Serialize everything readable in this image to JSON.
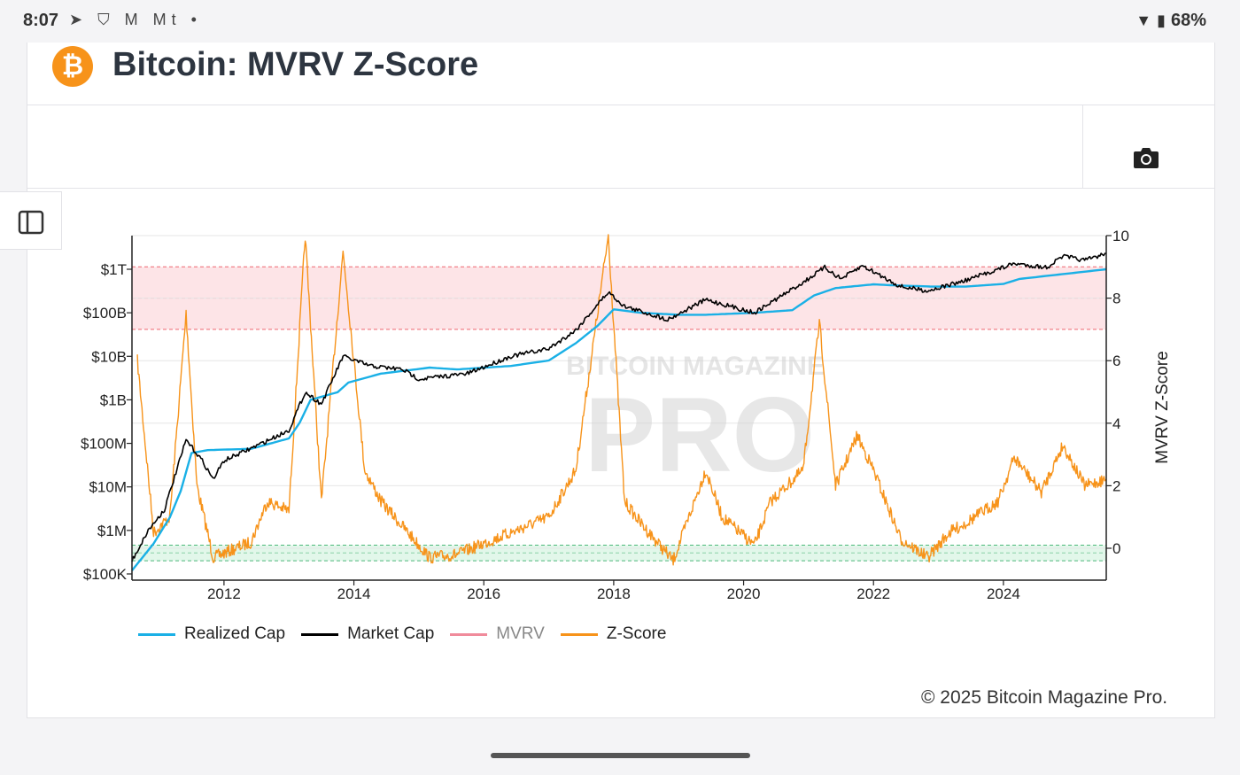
{
  "status_bar": {
    "time": "8:07",
    "icons": "➤ ⛉ M Mt •",
    "battery": "68%"
  },
  "header": {
    "logo_glyph": "₿",
    "title": "Bitcoin: MVRV Z-Score"
  },
  "watermark": {
    "line1": "BITCOIN MAGAZINE",
    "line2": "PRO"
  },
  "copyright": "© 2025 Bitcoin Magazine Pro.",
  "colors": {
    "realized_cap": "#1ab0e6",
    "market_cap": "#000000",
    "mvrv": "#f08b9b",
    "zscore": "#f7931a",
    "red_band": "#fde4e7",
    "green_band": "#e2f7ea"
  },
  "chart_data": {
    "type": "line",
    "x_range": [
      "2010-08",
      "2025-08"
    ],
    "x_ticks": [
      "2012",
      "2014",
      "2016",
      "2018",
      "2020",
      "2022",
      "2024"
    ],
    "left_axis": {
      "scale": "log",
      "tick_labels": [
        "$100K",
        "$1M",
        "$10M",
        "$100M",
        "$1B",
        "$10B",
        "$100B",
        "$1T"
      ],
      "range_usd": [
        100000,
        6000000000000
      ]
    },
    "right_axis": {
      "label": "MVRV Z-Score",
      "range": [
        -1,
        10
      ],
      "ticks": [
        0,
        2,
        4,
        6,
        8,
        10
      ]
    },
    "bands": [
      {
        "name": "overvalued",
        "zscore_from": 7,
        "zscore_to": 9
      },
      {
        "name": "undervalued",
        "zscore_from": -0.4,
        "zscore_to": 0.1
      }
    ],
    "legend": {
      "placement": "bottom-left"
    },
    "series": [
      {
        "name": "Realized Cap",
        "axis": "left",
        "points": [
          [
            "2010-08",
            120000
          ],
          [
            "2010-12",
            500000
          ],
          [
            "2011-03",
            2000000
          ],
          [
            "2011-05",
            8000000
          ],
          [
            "2011-07",
            60000000
          ],
          [
            "2011-10",
            70000000
          ],
          [
            "2012-06",
            75000000
          ],
          [
            "2013-01",
            130000000
          ],
          [
            "2013-03",
            300000000
          ],
          [
            "2013-05",
            1000000000
          ],
          [
            "2013-10",
            1500000000
          ],
          [
            "2013-12",
            2500000000
          ],
          [
            "2014-06",
            4000000000
          ],
          [
            "2015-03",
            5500000000
          ],
          [
            "2015-08",
            5000000000
          ],
          [
            "2016-06",
            6000000000
          ],
          [
            "2017-01",
            8000000000
          ],
          [
            "2017-06",
            20000000000
          ],
          [
            "2017-10",
            50000000000
          ],
          [
            "2018-01",
            120000000000
          ],
          [
            "2018-06",
            100000000000
          ],
          [
            "2019-01",
            90000000000
          ],
          [
            "2019-06",
            90000000000
          ],
          [
            "2020-03",
            100000000000
          ],
          [
            "2020-10",
            115000000000
          ],
          [
            "2021-02",
            250000000000
          ],
          [
            "2021-06",
            370000000000
          ],
          [
            "2022-01",
            450000000000
          ],
          [
            "2022-06",
            420000000000
          ],
          [
            "2022-12",
            400000000000
          ],
          [
            "2023-06",
            400000000000
          ],
          [
            "2024-01",
            460000000000
          ],
          [
            "2024-04",
            600000000000
          ],
          [
            "2025-01",
            800000000000
          ],
          [
            "2025-08",
            1000000000000
          ]
        ]
      },
      {
        "name": "Market Cap",
        "axis": "left",
        "points": [
          [
            "2010-08",
            200000
          ],
          [
            "2010-11",
            1000000
          ],
          [
            "2011-02",
            3000000
          ],
          [
            "2011-06",
            120000000
          ],
          [
            "2011-09",
            40000000
          ],
          [
            "2011-11",
            15000000
          ],
          [
            "2012-01",
            40000000
          ],
          [
            "2012-08",
            100000000
          ],
          [
            "2013-01",
            200000000
          ],
          [
            "2013-04",
            1500000000
          ],
          [
            "2013-07",
            800000000
          ],
          [
            "2013-11",
            10000000000
          ],
          [
            "2014-04",
            6000000000
          ],
          [
            "2014-10",
            5000000000
          ],
          [
            "2015-01",
            3000000000
          ],
          [
            "2015-10",
            4000000000
          ],
          [
            "2016-06",
            10000000000
          ],
          [
            "2017-01",
            15000000000
          ],
          [
            "2017-06",
            40000000000
          ],
          [
            "2017-12",
            300000000000
          ],
          [
            "2018-03",
            140000000000
          ],
          [
            "2018-11",
            70000000000
          ],
          [
            "2019-06",
            200000000000
          ],
          [
            "2020-03",
            100000000000
          ],
          [
            "2020-12",
            500000000000
          ],
          [
            "2021-04",
            1100000000000
          ],
          [
            "2021-07",
            600000000000
          ],
          [
            "2021-11",
            1200000000000
          ],
          [
            "2022-06",
            400000000000
          ],
          [
            "2022-11",
            320000000000
          ],
          [
            "2023-06",
            550000000000
          ],
          [
            "2024-03",
            1350000000000
          ],
          [
            "2024-09",
            1100000000000
          ],
          [
            "2024-12",
            2000000000000
          ],
          [
            "2025-04",
            1600000000000
          ],
          [
            "2025-08",
            2300000000000
          ]
        ]
      },
      {
        "name": "MVRV",
        "axis": "left",
        "points": []
      },
      {
        "name": "Z-Score",
        "axis": "right",
        "points": [
          [
            "2010-09",
            6.0
          ],
          [
            "2010-12",
            0.5
          ],
          [
            "2011-03",
            1.0
          ],
          [
            "2011-06",
            7.5
          ],
          [
            "2011-08",
            2.0
          ],
          [
            "2011-11",
            -0.3
          ],
          [
            "2012-06",
            0.2
          ],
          [
            "2012-09",
            1.5
          ],
          [
            "2013-01",
            1.2
          ],
          [
            "2013-04",
            10.0
          ],
          [
            "2013-07",
            1.5
          ],
          [
            "2013-11",
            9.5
          ],
          [
            "2014-03",
            2.5
          ],
          [
            "2014-06",
            1.5
          ],
          [
            "2014-12",
            0.3
          ],
          [
            "2015-03",
            -0.3
          ],
          [
            "2015-08",
            -0.2
          ],
          [
            "2016-06",
            0.5
          ],
          [
            "2017-01",
            1.0
          ],
          [
            "2017-06",
            2.5
          ],
          [
            "2017-12",
            10.0
          ],
          [
            "2018-03",
            1.5
          ],
          [
            "2018-06",
            0.8
          ],
          [
            "2018-12",
            -0.4
          ],
          [
            "2019-06",
            2.5
          ],
          [
            "2019-09",
            1.0
          ],
          [
            "2020-03",
            0.1
          ],
          [
            "2020-06",
            1.5
          ],
          [
            "2020-12",
            2.5
          ],
          [
            "2021-03",
            7.2
          ],
          [
            "2021-06",
            2.0
          ],
          [
            "2021-10",
            3.6
          ],
          [
            "2022-01",
            2.5
          ],
          [
            "2022-06",
            0.3
          ],
          [
            "2022-11",
            -0.3
          ],
          [
            "2023-03",
            0.5
          ],
          [
            "2023-06",
            0.8
          ],
          [
            "2023-12",
            1.5
          ],
          [
            "2024-03",
            2.9
          ],
          [
            "2024-08",
            1.8
          ],
          [
            "2024-12",
            3.3
          ],
          [
            "2025-04",
            2.0
          ],
          [
            "2025-08",
            2.2
          ]
        ]
      }
    ]
  }
}
